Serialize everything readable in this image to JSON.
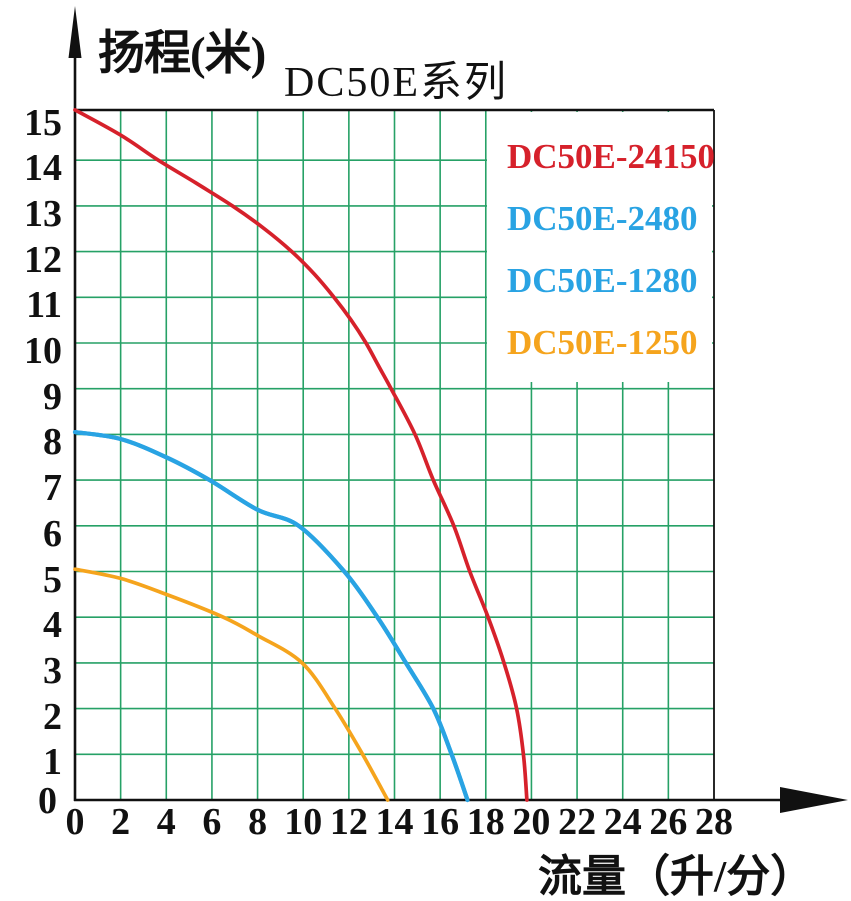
{
  "page": {
    "background": "#ffffff"
  },
  "labels": {
    "title": "DC50E系列",
    "y_axis_title": "扬程(米)",
    "x_axis_title": "流量（升/分）",
    "origin_label": "0"
  },
  "legend": {
    "position": "top-right",
    "items": [
      {
        "label": "DC50E-24150",
        "color": "#d6212b"
      },
      {
        "label": "DC50E-2480",
        "color": "#29a3e3"
      },
      {
        "label": "DC50E-1280",
        "color": "#29a3e3"
      },
      {
        "label": "DC50E-1250",
        "color": "#f5a41d"
      }
    ]
  },
  "chart_data": {
    "type": "line",
    "title": "DC50E系列",
    "xlabel": "流量（升/分）",
    "ylabel": "扬程(米)",
    "xlim": [
      0,
      28
    ],
    "ylim": [
      0,
      15.1
    ],
    "x_ticks": [
      0,
      2,
      4,
      6,
      8,
      10,
      12,
      14,
      16,
      18,
      20,
      22,
      24,
      26,
      28
    ],
    "y_ticks": [
      0,
      1,
      2,
      3,
      4,
      5,
      6,
      7,
      8,
      9,
      10,
      11,
      12,
      13,
      14,
      15
    ],
    "grid": true,
    "grid_color": "#26a166",
    "axis_color": "#111111",
    "frame_color": "#111111",
    "legend_position": "top-right",
    "series": [
      {
        "name": "DC50E-24150",
        "color": "#d6212b",
        "max_head_m": 15,
        "max_flow_lpm": 19.8,
        "points": [
          [
            0,
            15.1
          ],
          [
            2,
            14.55
          ],
          [
            3.65,
            14
          ],
          [
            5.3,
            13.5
          ],
          [
            6.9,
            13
          ],
          [
            8.3,
            12.5
          ],
          [
            9.5,
            12
          ],
          [
            10.5,
            11.5
          ],
          [
            11.35,
            11
          ],
          [
            12.1,
            10.5
          ],
          [
            12.75,
            10
          ],
          [
            13.3,
            9.5
          ],
          [
            13.85,
            9
          ],
          [
            14.9,
            8
          ],
          [
            15.7,
            7
          ],
          [
            16.6,
            6
          ],
          [
            17.3,
            5
          ],
          [
            18.1,
            4
          ],
          [
            18.8,
            3
          ],
          [
            19.35,
            2
          ],
          [
            19.65,
            1
          ],
          [
            19.8,
            0
          ]
        ]
      },
      {
        "name": "DC50E-2480",
        "color": "#29a3e3",
        "max_head_m": 8,
        "max_flow_lpm": 17.2,
        "points": [
          [
            0,
            8.05
          ],
          [
            2,
            7.9
          ],
          [
            4,
            7.5
          ],
          [
            5.9,
            7
          ],
          [
            8,
            6.35
          ],
          [
            9.8,
            6
          ],
          [
            11.8,
            5
          ],
          [
            13.25,
            4
          ],
          [
            14.5,
            3
          ],
          [
            15.7,
            2
          ],
          [
            16.5,
            1
          ],
          [
            17.2,
            0
          ]
        ]
      },
      {
        "name": "DC50E-1280",
        "color": "#29a3e3",
        "max_head_m": 8,
        "max_flow_lpm": 17.2,
        "points": [
          [
            0,
            8.05
          ],
          [
            2,
            7.9
          ],
          [
            4,
            7.5
          ],
          [
            5.9,
            7
          ],
          [
            8,
            6.35
          ],
          [
            9.8,
            6
          ],
          [
            11.8,
            5
          ],
          [
            13.25,
            4
          ],
          [
            14.5,
            3
          ],
          [
            15.7,
            2
          ],
          [
            16.5,
            1
          ],
          [
            17.2,
            0
          ]
        ]
      },
      {
        "name": "DC50E-1250",
        "color": "#f5a41d",
        "max_head_m": 5,
        "max_flow_lpm": 13.7,
        "points": [
          [
            0,
            5.05
          ],
          [
            2,
            4.85
          ],
          [
            4,
            4.5
          ],
          [
            6.5,
            4
          ],
          [
            8,
            3.6
          ],
          [
            9.95,
            3
          ],
          [
            11.4,
            2
          ],
          [
            12.6,
            1
          ],
          [
            13.7,
            0
          ]
        ]
      }
    ]
  }
}
